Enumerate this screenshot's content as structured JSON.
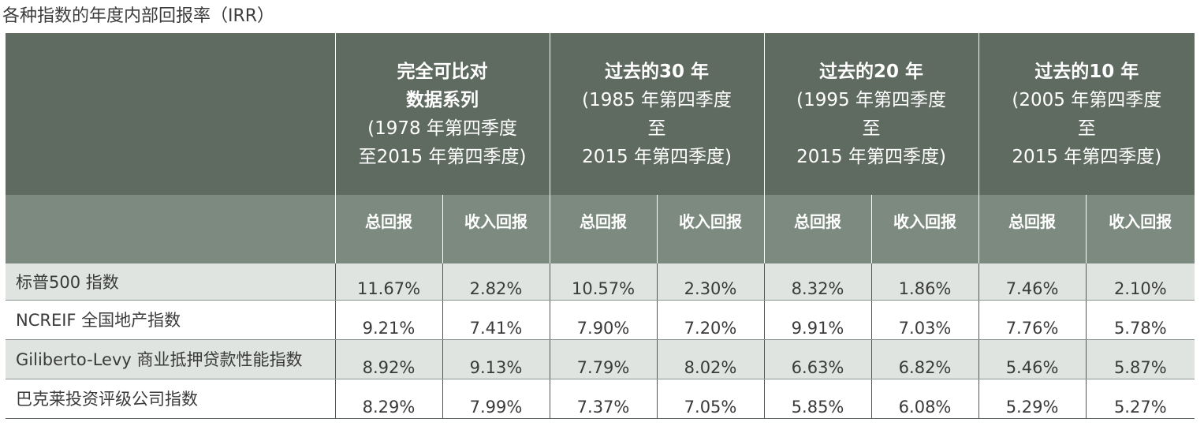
{
  "title": "各种指数的年度内部回报率（IRR）",
  "colors": {
    "header_dark": "#5f6b61",
    "header_mid": "#7d8a80",
    "row_shade": "#dfe4e0",
    "text": "#3d3d3d"
  },
  "periods": [
    {
      "title_lines": [
        "完全可比对",
        "数据系列"
      ],
      "sub_lines": [
        "(1978 年第四季度",
        "至2015 年第四季度)"
      ]
    },
    {
      "title_lines": [
        "过去的30 年"
      ],
      "sub_lines": [
        "(1985 年第四季度",
        "至",
        "2015  年第四季度)"
      ]
    },
    {
      "title_lines": [
        "过去的20 年"
      ],
      "sub_lines": [
        "(1995 年第四季度",
        "至",
        "2015 年第四季度)"
      ]
    },
    {
      "title_lines": [
        "过去的10 年"
      ],
      "sub_lines": [
        "(2005 年第四季度",
        "至",
        "2015  年第四季度)"
      ]
    }
  ],
  "subheaders": [
    "总回报",
    "收入回报",
    "总回报",
    "收入回报",
    "总回报",
    "收入回报",
    "总回报",
    "收入回报"
  ],
  "rows": [
    {
      "label": "标普500 指数",
      "values": [
        "11.67%",
        "2.82%",
        "10.57%",
        "2.30%",
        "8.32%",
        "1.86%",
        "7.46%",
        "2.10%"
      ]
    },
    {
      "label": "NCREIF 全国地产指数",
      "values": [
        "9.21%",
        "7.41%",
        "7.90%",
        "7.20%",
        "9.91%",
        "7.03%",
        "7.76%",
        "5.78%"
      ]
    },
    {
      "label": "Giliberto-Levy  商业抵押贷款性能指数",
      "values": [
        "8.92%",
        "9.13%",
        "7.79%",
        "8.02%",
        "6.63%",
        "6.82%",
        "5.46%",
        "5.87%"
      ]
    },
    {
      "label": "巴克莱投资评级公司指数",
      "values": [
        "8.29%",
        "7.99%",
        "7.37%",
        "7.05%",
        "5.85%",
        "6.08%",
        "5.29%",
        "5.27%"
      ]
    }
  ]
}
